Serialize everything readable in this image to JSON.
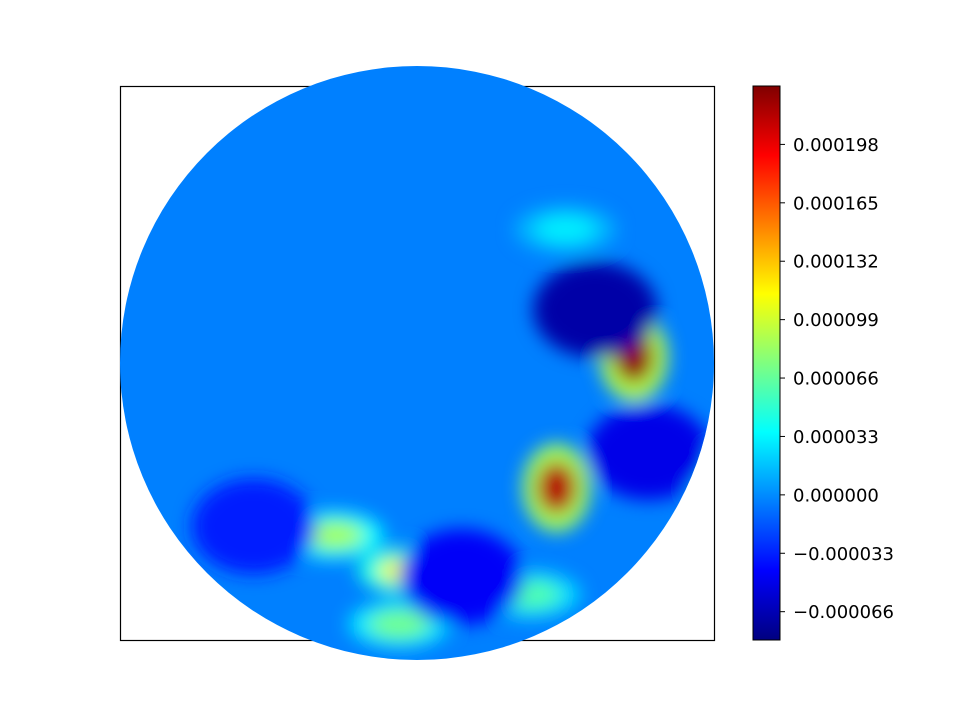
{
  "chart_data": {
    "type": "heatmap",
    "subtype": "filled-contour",
    "domain_shape": "circle",
    "colormap": "jet",
    "title": "",
    "xlabel": "",
    "ylabel": "",
    "axis_ticks_visible": false,
    "grid": false,
    "colorbar": {
      "position": "right",
      "range": [
        -8.2e-05,
        0.000231
      ],
      "tick_values": [
        -6.6e-05,
        -3.3e-05,
        0.0,
        3.3e-05,
        6.6e-05,
        9.9e-05,
        0.000132,
        0.000165,
        0.000198
      ],
      "tick_labels": [
        "−0.000066",
        "−0.000033",
        "0.000000",
        "0.000033",
        "0.000066",
        "0.000099",
        "0.000132",
        "0.000165",
        "0.000198"
      ]
    },
    "background_value": 0.0,
    "features": [
      {
        "name": "hot-spot-upper-right",
        "cx": 0.73,
        "cy": 0.02,
        "peak": 0.000225
      },
      {
        "name": "hot-spot-lower-middle",
        "cx": 0.47,
        "cy": -0.42,
        "peak": 0.000215
      },
      {
        "name": "filament-right",
        "cx": 0.88,
        "cy": -0.35,
        "peak": 6.5e-05
      },
      {
        "name": "blob-lower-left",
        "cx": -0.28,
        "cy": -0.58,
        "peak": 8.5e-05
      },
      {
        "name": "blob-lower-center",
        "cx": -0.03,
        "cy": -0.7,
        "peak": 0.00011
      },
      {
        "name": "blob-bottom",
        "cx": -0.06,
        "cy": -0.88,
        "peak": 7e-05
      },
      {
        "name": "filament-bottom-right",
        "cx": 0.38,
        "cy": -0.78,
        "peak": 6e-05
      },
      {
        "name": "band-upper-right",
        "cx": 0.5,
        "cy": 0.45,
        "peak": 3e-05
      },
      {
        "name": "trough-upper-right",
        "cx": 0.6,
        "cy": 0.18,
        "peak": -7e-05
      },
      {
        "name": "trough-right",
        "cx": 0.78,
        "cy": -0.3,
        "peak": -5e-05
      },
      {
        "name": "trough-lower",
        "cx": 0.15,
        "cy": -0.72,
        "peak": -4.5e-05
      },
      {
        "name": "trough-lower-left",
        "cx": -0.55,
        "cy": -0.55,
        "peak": -3.5e-05
      }
    ]
  }
}
